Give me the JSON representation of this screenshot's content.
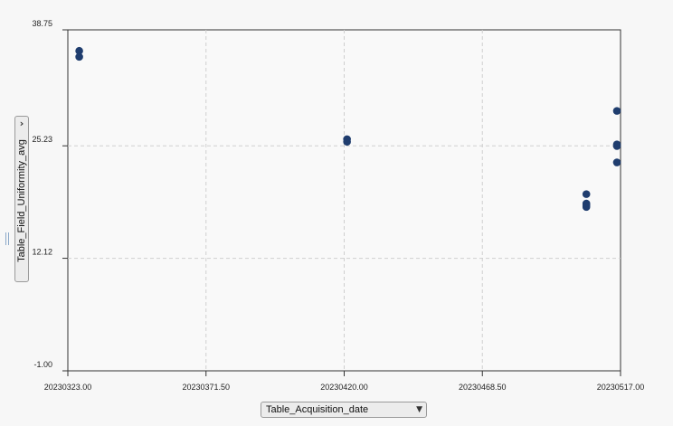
{
  "chart_data": {
    "type": "scatter",
    "xlabel": "Table_Acquisition_date",
    "ylabel": "Table_Field_Uniformity_avg",
    "xlim": [
      20230323.0,
      20230517.0
    ],
    "ylim": [
      -1.0,
      38.75
    ],
    "xticks": [
      "20230323.00",
      "20230371.50",
      "20230420.00",
      "20230468.50",
      "20230517.00"
    ],
    "yticks": [
      "-1.00",
      "12.12",
      "25.23",
      "38.75"
    ],
    "xtick_values": [
      20230323.0,
      20230371.5,
      20230420.0,
      20230468.5,
      20230517.0
    ],
    "ytick_values": [
      -1.0,
      12.12,
      25.23,
      38.75
    ],
    "grid": true,
    "marker_color": "#1f3d6e",
    "series": [
      {
        "x": [
          20230327,
          20230327,
          20230421,
          20230421,
          20230505,
          20230505,
          20230505,
          20230505,
          20230517,
          20230517,
          20230517,
          20230517
        ],
        "y": [
          36.3,
          35.6,
          26.0,
          25.7,
          19.6,
          18.5,
          18.1,
          18.3,
          29.3,
          25.4,
          25.2,
          23.3
        ]
      }
    ]
  },
  "controls": {
    "y_axis_selector": "Table_Field_Uniformity_avg",
    "x_axis_selector": "Table_Acquisition_date"
  }
}
